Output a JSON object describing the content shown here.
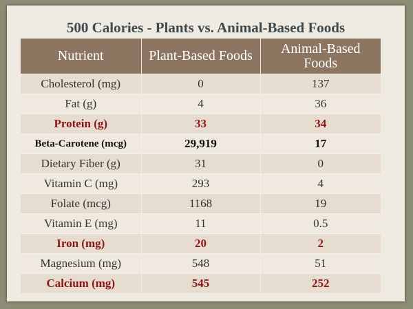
{
  "title": "500 Calories - Plants vs. Animal-Based Foods",
  "table": {
    "header": [
      "Nutrient",
      "Plant-Based Foods",
      "Animal-Based Foods"
    ],
    "rows": [
      [
        "Cholesterol (mg)",
        "0",
        "137"
      ],
      [
        "Fat (g)",
        "4",
        "36"
      ],
      [
        "Protein (g)",
        "33",
        "34"
      ],
      [
        "Beta-Carotene (mcg)",
        "29,919",
        "17"
      ],
      [
        "Dietary Fiber (g)",
        "31",
        "0"
      ],
      [
        "Vitamin C (mg)",
        "293",
        "4"
      ],
      [
        "Folate (mcg)",
        "1168",
        "19"
      ],
      [
        "Vitamin E (mg)",
        "11",
        "0.5"
      ],
      [
        "Iron (mg)",
        "20",
        "2"
      ],
      [
        "Magnesium (mg)",
        "548",
        "51"
      ],
      [
        "Calcium (mg)",
        "545",
        "252"
      ]
    ]
  }
}
